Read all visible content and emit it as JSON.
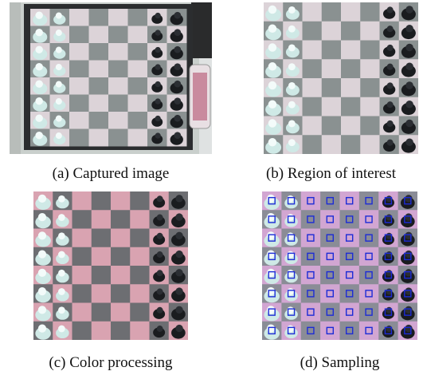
{
  "figure": {
    "panels": [
      {
        "id": "a",
        "caption": "(a) Captured image"
      },
      {
        "id": "b",
        "caption": "(b) Region of interest"
      },
      {
        "id": "c",
        "caption": "(c) Color processing"
      },
      {
        "id": "d",
        "caption": "(d) Sampling"
      }
    ]
  },
  "colors": {
    "dark_square_captured": "#8a9191",
    "light_square_captured": "#dcd3d8",
    "dark_square_processed": "#6d6e72",
    "light_square_processed": "#d9a3b1",
    "white_piece": "#cfe9e6",
    "black_piece": "#1a1c1f",
    "sample_marker": "#1c2bd6"
  }
}
